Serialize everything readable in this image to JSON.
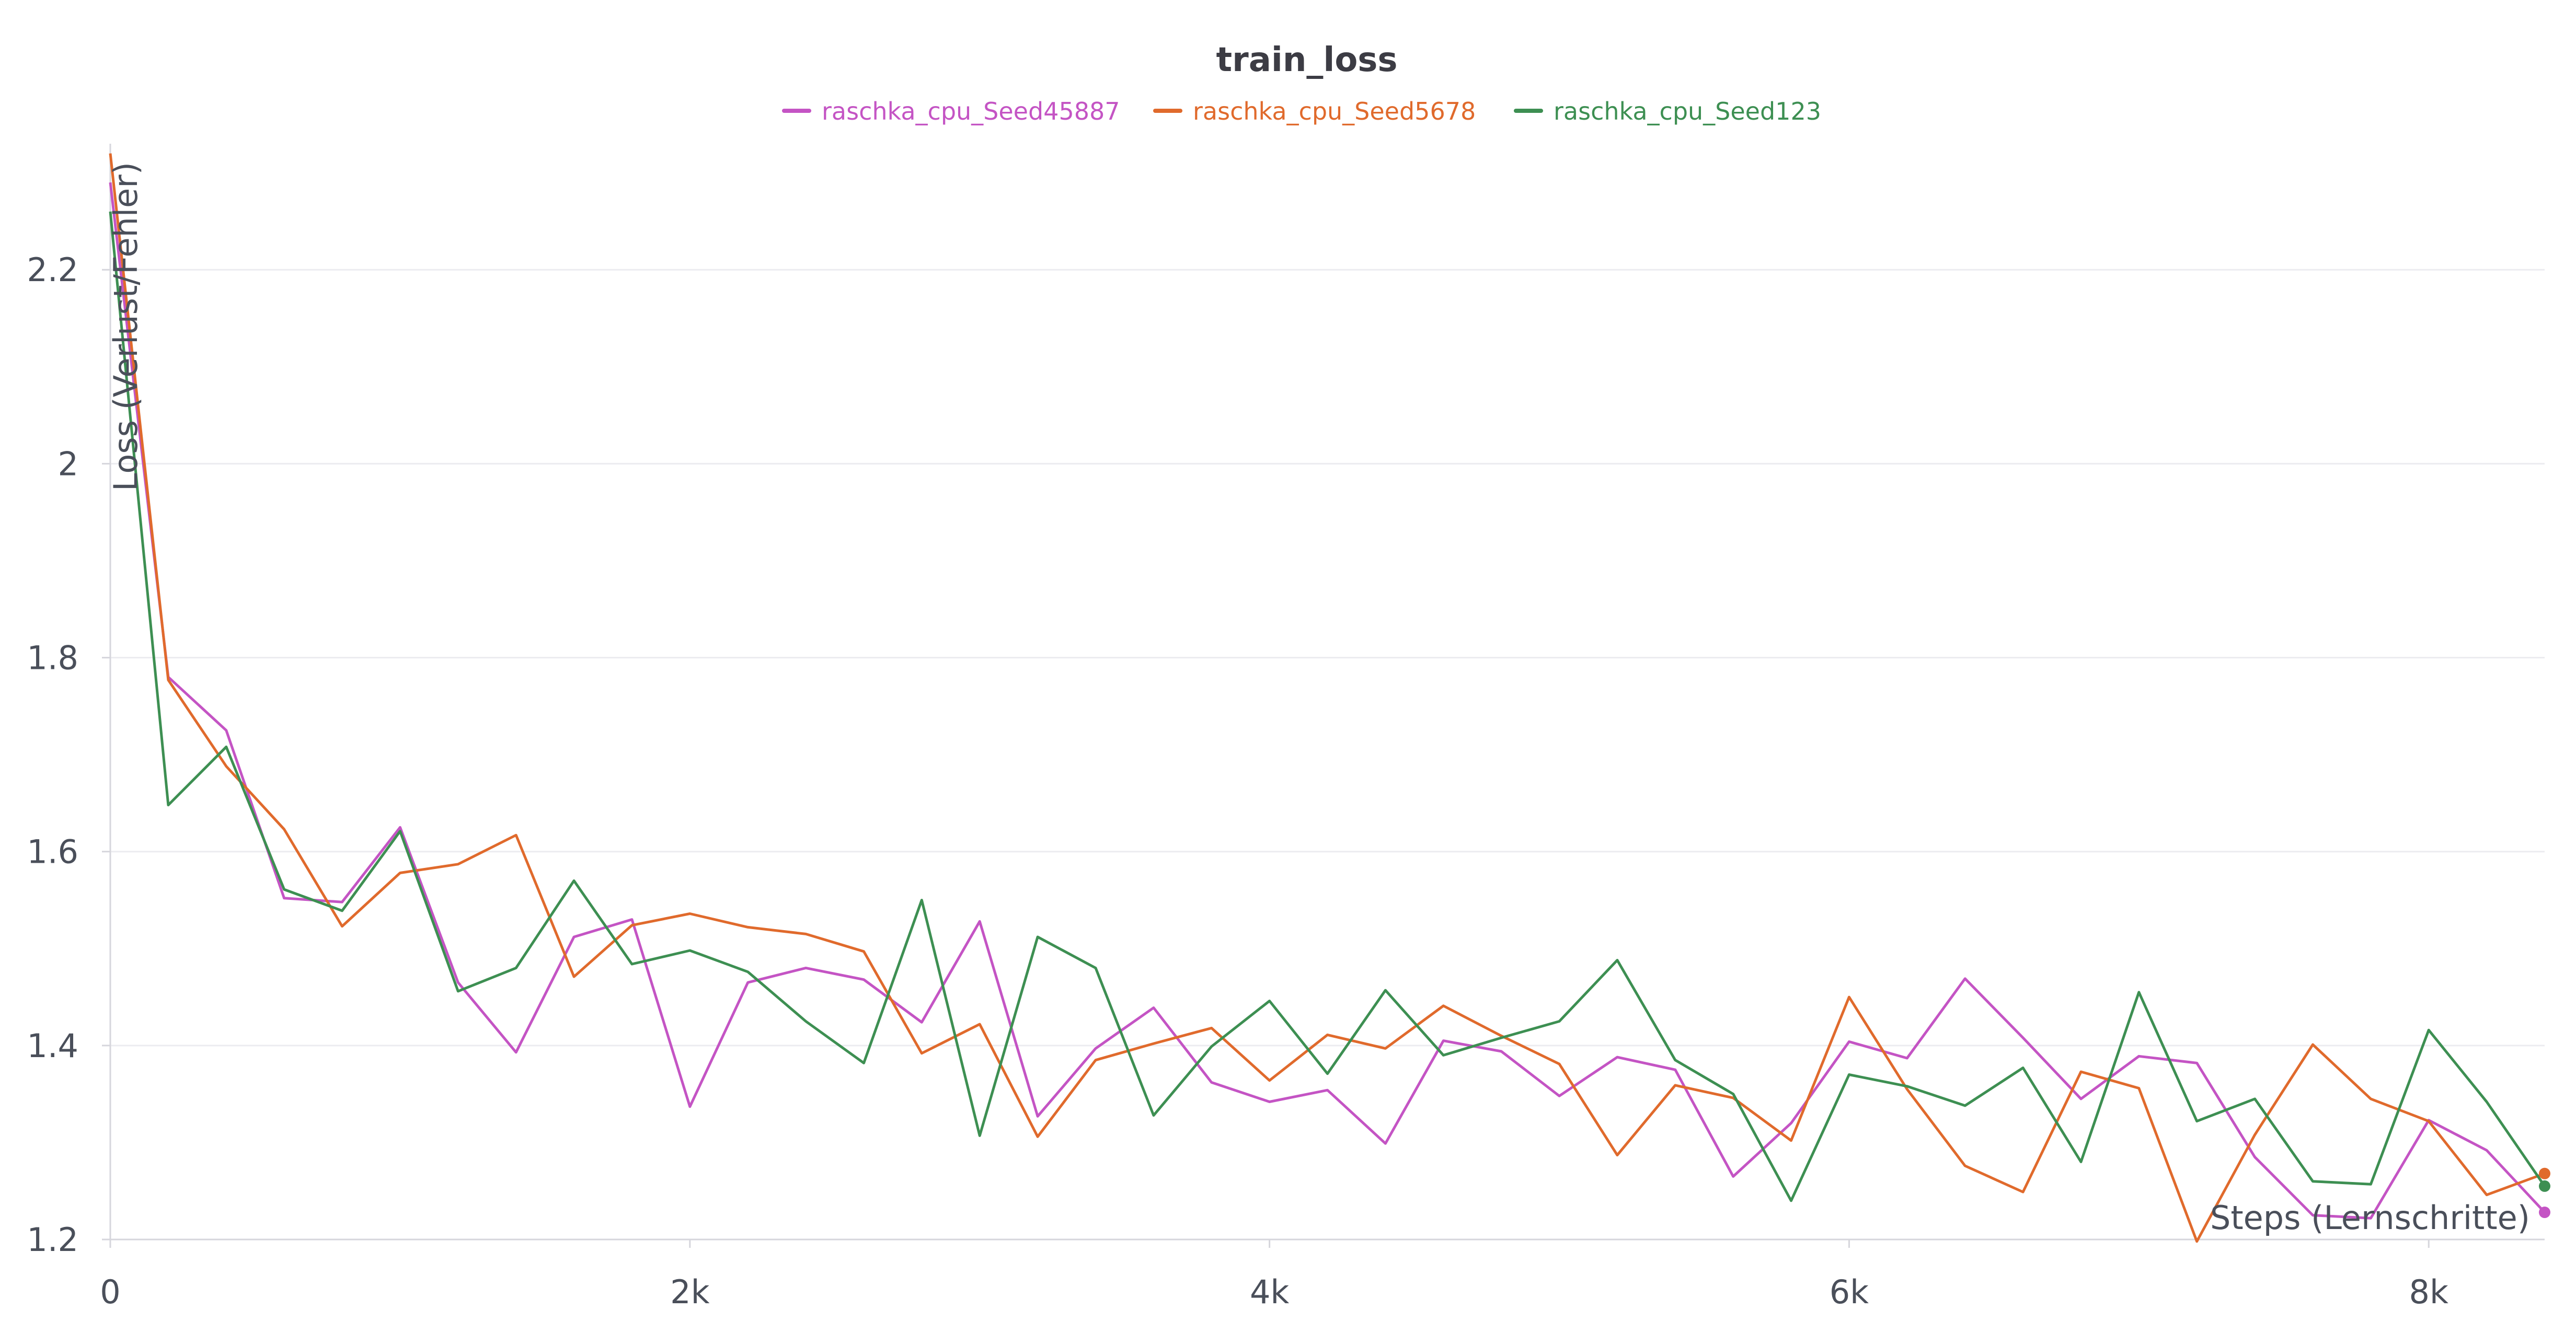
{
  "chart_data": {
    "type": "line",
    "title": "train_loss",
    "xlabel": "Steps (Lernschritte)",
    "ylabel": "Loss (Verlust/Fehler)",
    "xlim": [
      0,
      8400
    ],
    "ylim": [
      1.2,
      2.33
    ],
    "xticks": [
      0,
      2000,
      4000,
      6000,
      8000
    ],
    "xtick_labels": [
      "0",
      "2k",
      "4k",
      "6k",
      "8k"
    ],
    "yticks": [
      1.2,
      1.4,
      1.6,
      1.8,
      2.0,
      2.2
    ],
    "ytick_labels": [
      "1.2",
      "1.4",
      "1.6",
      "1.8",
      "2",
      "2.2"
    ],
    "grid": true,
    "legend_position": "top",
    "x": [
      0,
      200,
      400,
      600,
      800,
      1000,
      1200,
      1400,
      1600,
      1800,
      2000,
      2200,
      2400,
      2600,
      2800,
      3000,
      3200,
      3400,
      3600,
      3800,
      4000,
      4200,
      4400,
      4600,
      4800,
      5000,
      5200,
      5400,
      5600,
      5800,
      6000,
      6200,
      6400,
      6600,
      6800,
      7000,
      7200,
      7400,
      7600,
      7800,
      8000,
      8200,
      8400
    ],
    "series": [
      {
        "name": "raschka_cpu_Seed45887",
        "color": "#c454c4",
        "values": [
          2.29,
          1.78,
          1.725,
          1.552,
          1.548,
          1.625,
          1.465,
          1.393,
          1.512,
          1.53,
          1.337,
          1.465,
          1.48,
          1.468,
          1.424,
          1.528,
          1.327,
          1.397,
          1.439,
          1.362,
          1.342,
          1.354,
          1.299,
          1.405,
          1.394,
          1.348,
          1.388,
          1.375,
          1.265,
          1.32,
          1.404,
          1.387,
          1.469,
          1.408,
          1.345,
          1.389,
          1.382,
          1.285,
          1.225,
          1.222,
          1.323,
          1.292,
          1.228
        ]
      },
      {
        "name": "raschka_cpu_Seed5678",
        "color": "#e06a2c",
        "values": [
          2.32,
          1.777,
          1.688,
          1.623,
          1.523,
          1.578,
          1.587,
          1.617,
          1.471,
          1.524,
          1.536,
          1.522,
          1.515,
          1.497,
          1.392,
          1.422,
          1.306,
          1.385,
          1.402,
          1.418,
          1.364,
          1.411,
          1.397,
          1.441,
          1.41,
          1.381,
          1.287,
          1.359,
          1.346,
          1.302,
          1.45,
          1.355,
          1.276,
          1.249,
          1.373,
          1.356,
          1.198,
          1.308,
          1.401,
          1.345,
          1.322,
          1.246,
          1.268
        ]
      },
      {
        "name": "raschka_cpu_Seed123",
        "color": "#3d8f52",
        "values": [
          2.26,
          1.648,
          1.708,
          1.561,
          1.539,
          1.621,
          1.456,
          1.48,
          1.57,
          1.484,
          1.498,
          1.476,
          1.425,
          1.382,
          1.55,
          1.307,
          1.512,
          1.48,
          1.328,
          1.399,
          1.446,
          1.371,
          1.457,
          1.39,
          1.408,
          1.425,
          1.488,
          1.385,
          1.35,
          1.24,
          1.37,
          1.358,
          1.338,
          1.377,
          1.28,
          1.455,
          1.322,
          1.345,
          1.26,
          1.257,
          1.416,
          1.342,
          1.255
        ]
      }
    ]
  }
}
